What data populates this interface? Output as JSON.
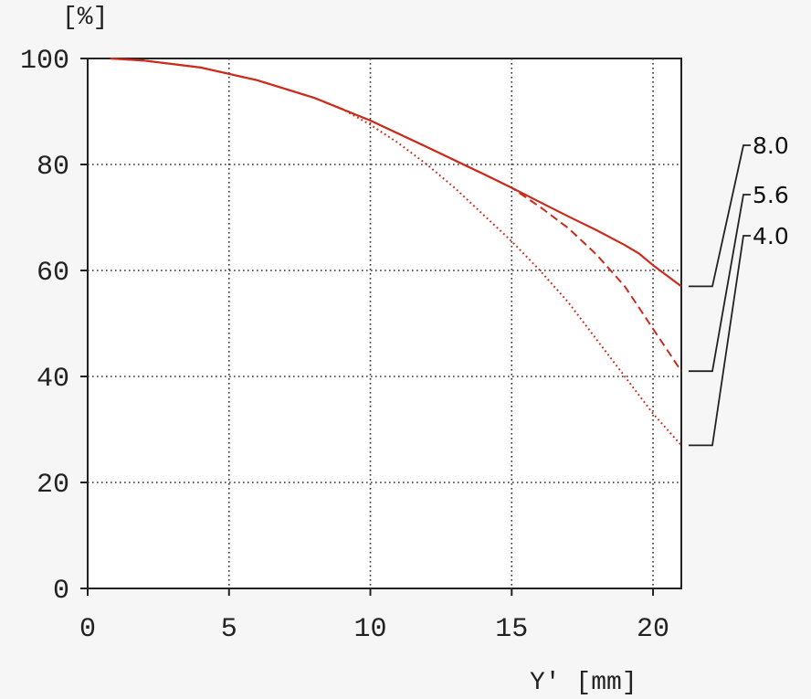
{
  "chart_data": {
    "type": "line",
    "title": "",
    "ylabel": "[%]",
    "xlabel": "Y' [mm]",
    "xlim": [
      0,
      21
    ],
    "ylim": [
      0,
      100
    ],
    "xticks": [
      0,
      5,
      10,
      15,
      20
    ],
    "yticks": [
      0,
      20,
      40,
      60,
      80,
      100
    ],
    "grid": true,
    "line_color": "#cc2a1a",
    "series": [
      {
        "name": "8.0",
        "style": "solid",
        "x": [
          0.8,
          2,
          4,
          6,
          8,
          10,
          12,
          14,
          15,
          16,
          17,
          18,
          19,
          19.5,
          20,
          20.5,
          21
        ],
        "y": [
          100,
          99.6,
          98.3,
          95.9,
          92.6,
          88.3,
          83.3,
          78.2,
          75.6,
          72.9,
          70.2,
          67.6,
          64.8,
          63.2,
          61.0,
          59.0,
          57.0
        ]
      },
      {
        "name": "5.6",
        "style": "dashed",
        "x": [
          0.8,
          2,
          4,
          6,
          8,
          10,
          12,
          14,
          15,
          16,
          17,
          18,
          19,
          19.5,
          20,
          20.5,
          21
        ],
        "y": [
          100,
          99.6,
          98.3,
          95.9,
          92.6,
          88.3,
          83.3,
          78.2,
          75.6,
          72.0,
          68.0,
          63.0,
          57.0,
          53.0,
          49.0,
          45.0,
          41.0
        ]
      },
      {
        "name": "4.0",
        "style": "dotted",
        "x": [
          0.8,
          2,
          4,
          6,
          8,
          9,
          10,
          11,
          12,
          13,
          14,
          15,
          16,
          17,
          18,
          19,
          20,
          21
        ],
        "y": [
          100,
          99.6,
          98.3,
          95.9,
          92.6,
          90.5,
          87.5,
          84.0,
          80.0,
          75.5,
          70.5,
          65.5,
          60.0,
          54.0,
          47.0,
          40.0,
          33.0,
          27.0
        ]
      }
    ]
  }
}
